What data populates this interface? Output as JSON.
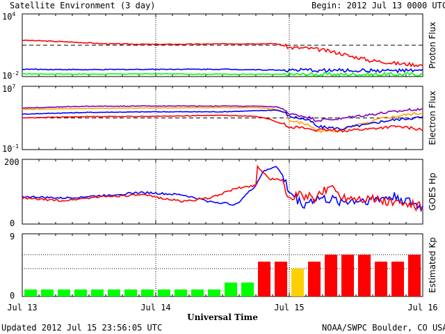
{
  "header": {
    "title": "Satellite Environment (3 day)",
    "begin": "Begin:  2012 Jul 13 0000 UTC"
  },
  "footer": {
    "updated": "Updated 2012 Jul 15 23:56:05 UTC",
    "credit": "NOAA/SWPC Boulder, CO USA"
  },
  "x_axis": {
    "label": "Universal Time",
    "ticks": [
      "Jul 13",
      "Jul 14",
      "Jul 15",
      "Jul 16"
    ],
    "range_days": [
      0,
      3
    ]
  },
  "colors": {
    "red": "#ff0000",
    "blue": "#0000ff",
    "green": "#00ff00",
    "purple": "#7a00b4",
    "orange": "#ffa500",
    "kp_green": "#00ff00",
    "kp_yellow": "#ffd000",
    "kp_red": "#ff0000"
  },
  "chart_data": [
    {
      "type": "line",
      "ylabel": "Proton Flux",
      "scale": "log",
      "ylim": [
        0.01,
        10000
      ],
      "y_ticks": [
        {
          "mant": "10",
          "exp": "4"
        },
        {
          "mant": "10",
          "exp": "-2"
        }
      ],
      "thresholds": [
        10
      ],
      "series": [
        {
          "color": "red",
          "x": [
            0,
            0.3,
            0.6,
            1.0,
            1.4,
            1.7,
            1.9,
            2.0,
            2.15,
            2.3,
            2.45,
            2.6,
            2.8,
            3.0
          ],
          "y": [
            30,
            22,
            14,
            12,
            13,
            14,
            14,
            6,
            5,
            2.6,
            0.9,
            0.35,
            0.18,
            0.12
          ]
        },
        {
          "color": "blue",
          "x": [
            0,
            0.5,
            1.0,
            1.5,
            2.0,
            2.5,
            3.0
          ],
          "y": [
            0.05,
            0.045,
            0.05,
            0.05,
            0.04,
            0.038,
            0.035
          ]
        },
        {
          "color": "green",
          "x": [
            0,
            0.5,
            1.0,
            1.5,
            2.0,
            2.5,
            3.0
          ],
          "y": [
            0.018,
            0.017,
            0.018,
            0.017,
            0.016,
            0.016,
            0.016
          ]
        }
      ]
    },
    {
      "type": "line",
      "ylabel": "Electron Flux",
      "scale": "log",
      "ylim": [
        0.1,
        10000000
      ],
      "y_ticks": [
        {
          "mant": "10",
          "exp": "7"
        },
        {
          "mant": "10",
          "exp": "-1"
        }
      ],
      "thresholds": [
        1000
      ],
      "series": [
        {
          "color": "purple",
          "x": [
            0,
            0.5,
            1.0,
            1.5,
            1.75,
            1.9,
            2.0,
            2.2,
            2.4,
            2.6,
            2.8,
            3.0
          ],
          "y": [
            18000,
            30000,
            32000,
            32000,
            30000,
            25000,
            3000,
            500,
            800,
            2500,
            6000,
            15000
          ]
        },
        {
          "color": "orange",
          "x": [
            0,
            0.5,
            1.0,
            1.5,
            1.75,
            1.9,
            2.0,
            2.2,
            2.4,
            2.6,
            2.8,
            3.0
          ],
          "y": [
            12000,
            16000,
            18000,
            20000,
            20000,
            12000,
            400,
            20,
            30,
            200,
            1500,
            4000
          ]
        },
        {
          "color": "blue",
          "x": [
            0,
            0.5,
            1.0,
            1.5,
            1.75,
            1.9,
            2.0,
            2.2,
            2.4,
            2.6,
            2.8,
            3.0
          ],
          "y": [
            3000,
            5000,
            6000,
            6000,
            8000,
            10000,
            1500,
            80,
            40,
            150,
            600,
            1200
          ]
        },
        {
          "color": "red",
          "x": [
            0,
            0.5,
            1.0,
            1.5,
            1.75,
            1.9,
            2.0,
            2.2,
            2.4,
            2.6,
            2.8,
            3.0
          ],
          "y": [
            1000,
            1500,
            1600,
            2200,
            1500,
            300,
            80,
            30,
            25,
            40,
            80,
            30
          ]
        }
      ]
    },
    {
      "type": "line",
      "ylabel": "GOES Hp",
      "scale": "linear",
      "ylim": [
        0,
        200
      ],
      "y_ticks": [
        {
          "label": "200",
          "value": 200
        },
        {
          "label": "0",
          "value": 0
        }
      ],
      "series": [
        {
          "color": "blue",
          "x": [
            0,
            0.3,
            0.6,
            0.9,
            1.2,
            1.4,
            1.6,
            1.75,
            1.8,
            1.9,
            1.95,
            2.0,
            2.1,
            2.2,
            2.4,
            2.6,
            2.8,
            3.0
          ],
          "y": [
            85,
            80,
            88,
            98,
            90,
            70,
            60,
            120,
            160,
            180,
            150,
            100,
            60,
            80,
            70,
            75,
            85,
            50
          ]
        },
        {
          "color": "red",
          "x": [
            0,
            0.3,
            0.6,
            0.9,
            1.2,
            1.4,
            1.6,
            1.75,
            1.76,
            1.85,
            1.95,
            2.0,
            2.1,
            2.2,
            2.3,
            2.4,
            2.6,
            2.8,
            3.0
          ],
          "y": [
            80,
            72,
            85,
            90,
            70,
            80,
            110,
            120,
            180,
            140,
            135,
            80,
            90,
            75,
            120,
            85,
            80,
            65,
            55
          ]
        }
      ]
    },
    {
      "type": "bar",
      "ylabel": "Estimated Kp",
      "ylim": [
        0,
        9
      ],
      "y_ticks": [
        {
          "label": "9",
          "value": 9
        },
        {
          "label": "0",
          "value": 0
        }
      ],
      "gridlines": [
        4,
        6
      ],
      "values": [
        1,
        1,
        1,
        1,
        1,
        1,
        1,
        1,
        1,
        1,
        1,
        1,
        2,
        2,
        5,
        5,
        4,
        5,
        6,
        6,
        6,
        5,
        5,
        6
      ],
      "colors": [
        "kp_green",
        "kp_green",
        "kp_green",
        "kp_green",
        "kp_green",
        "kp_green",
        "kp_green",
        "kp_green",
        "kp_green",
        "kp_green",
        "kp_green",
        "kp_green",
        "kp_green",
        "kp_green",
        "kp_red",
        "kp_red",
        "kp_yellow",
        "kp_red",
        "kp_red",
        "kp_red",
        "kp_red",
        "kp_red",
        "kp_red",
        "kp_red"
      ]
    }
  ]
}
